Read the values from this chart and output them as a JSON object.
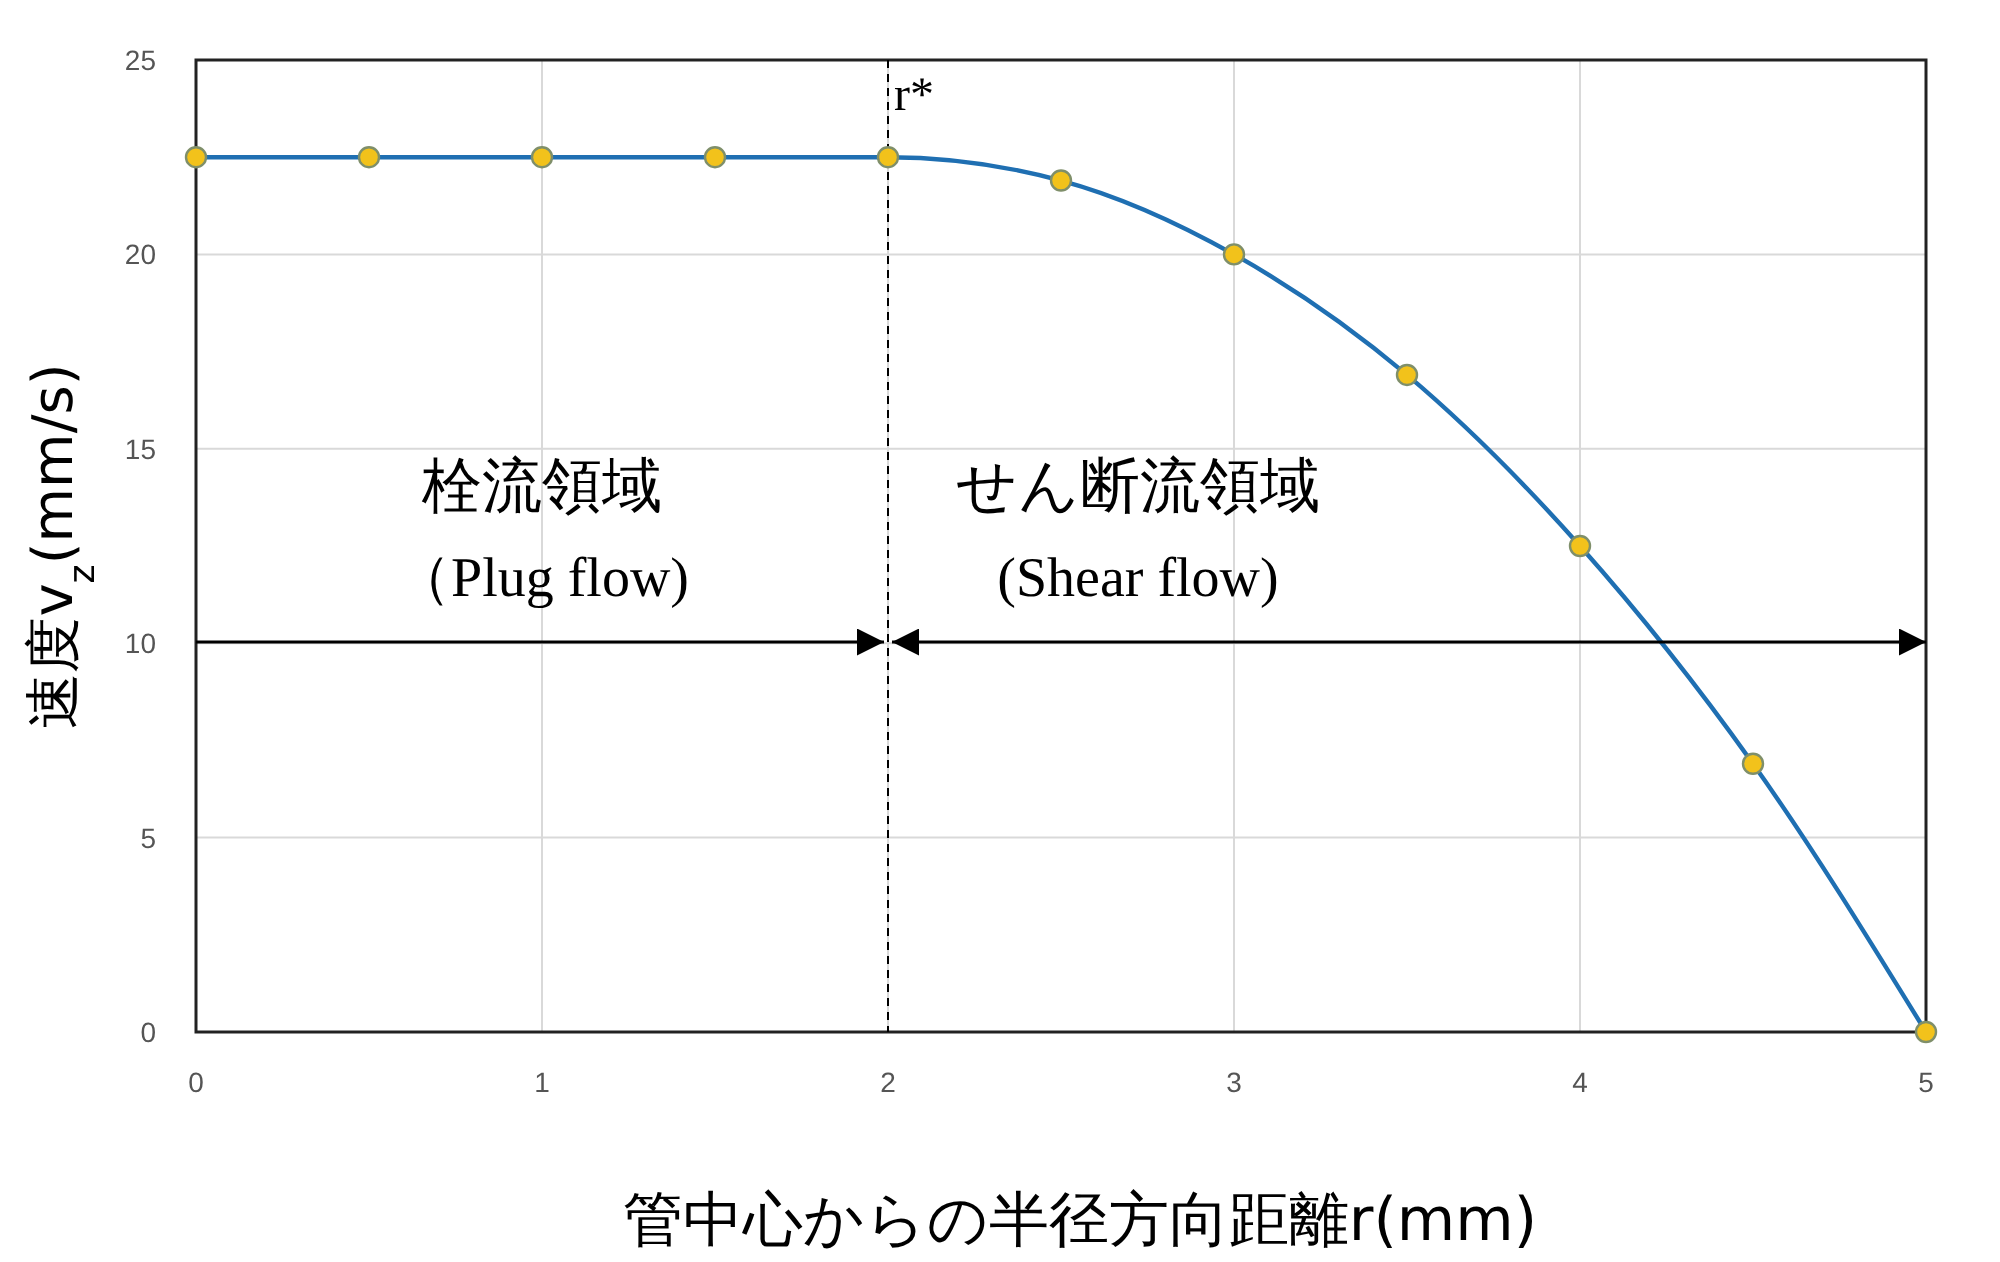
{
  "chart_data": {
    "type": "line",
    "xlabel": "管中心からの半径方向距離r(mm)",
    "ylabel": "速度v$_{z}$(mm/s)",
    "x": [
      0,
      0.5,
      1,
      1.5,
      2,
      2.5,
      3,
      3.5,
      4,
      4.5,
      5
    ],
    "series": [
      {
        "color": "#1f6fb2",
        "values": [
          22.5,
          22.5,
          22.5,
          22.5,
          22.5,
          21.9,
          20.0,
          16.9,
          12.5,
          6.9,
          0
        ]
      }
    ],
    "xlim": [
      0,
      5
    ],
    "xticks": [
      0,
      1,
      2,
      3,
      4,
      5
    ],
    "ylim": [
      0,
      25
    ],
    "yticks": [
      0,
      5,
      10,
      15,
      20,
      25
    ],
    "grid": true,
    "marker": "circle",
    "line_style": "solid",
    "ref_lines": [
      {
        "axis": "x",
        "value": 2,
        "label": "r*",
        "color": "#000000",
        "line_style": "dashed"
      }
    ],
    "annotations": [
      "栓流領域",
      "（Plug flow)",
      "せん断流領域",
      "(Shear flow)"
    ]
  }
}
